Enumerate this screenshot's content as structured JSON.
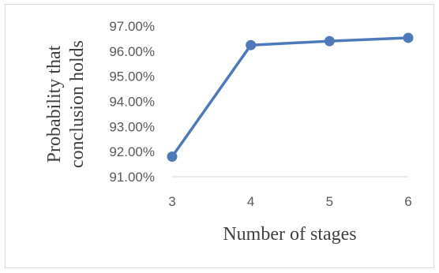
{
  "chart_data": {
    "type": "line",
    "title": "",
    "xlabel": "Number of stages",
    "ylabel_line1": "Probability that",
    "ylabel_line2": "conclusion holds",
    "x": [
      3,
      4,
      5,
      6
    ],
    "x_tick_labels": [
      "3",
      "4",
      "5",
      "6"
    ],
    "y_tick_labels": [
      "91.00%",
      "92.00%",
      "93.00%",
      "94.00%",
      "95.00%",
      "96.00%",
      "97.00%"
    ],
    "ylim": [
      0.91,
      0.97
    ],
    "series": [
      {
        "values": [
          0.918,
          0.9624,
          0.964,
          0.9653
        ]
      }
    ],
    "line_color": "#4f7ab9",
    "grid": false,
    "legend": "none"
  }
}
